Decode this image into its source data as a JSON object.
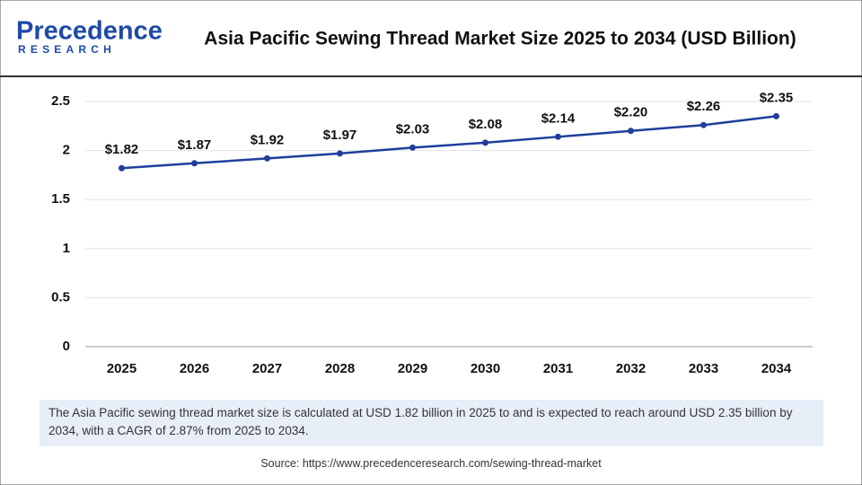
{
  "logo": {
    "name": "Precedence",
    "subtitle": "RESEARCH"
  },
  "description": "The Asia Pacific sewing thread market size is calculated at USD 1.82 billion in 2025 to and is expected to reach around USD 2.35 billion by 2034, with a CAGR of 2.87% from 2025 to 2034.",
  "source": "Source: https://www.precedenceresearch.com/sewing-thread-market",
  "chart_data": {
    "type": "line",
    "title": "Asia Pacific Sewing Thread Market Size 2025 to 2034 (USD Billion)",
    "categories": [
      "2025",
      "2026",
      "2027",
      "2028",
      "2029",
      "2030",
      "2031",
      "2032",
      "2033",
      "2034"
    ],
    "values": [
      1.82,
      1.87,
      1.92,
      1.97,
      2.03,
      2.08,
      2.14,
      2.2,
      2.26,
      2.35
    ],
    "value_labels": [
      "$1.82",
      "$1.87",
      "$1.92",
      "$1.97",
      "$2.03",
      "$2.08",
      "$2.14",
      "$2.20",
      "$2.26",
      "$2.35"
    ],
    "color": "#1f3f9a",
    "ylim": [
      0,
      2.5
    ],
    "yticks": [
      0,
      0.5,
      1,
      1.5,
      2,
      2.5
    ],
    "grid": true
  }
}
